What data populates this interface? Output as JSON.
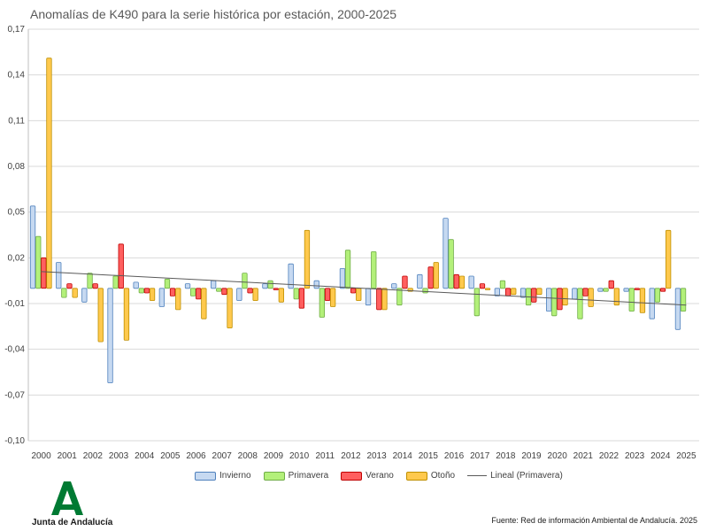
{
  "header": {
    "title": "Anomalías de K490 para la serie histórica por estación, 2000-2025"
  },
  "footer": {
    "source": "Fuente: Red de información Ambiental de Andalucía. 2025",
    "logo_text": "Junta de Andalucía"
  },
  "colors": {
    "invierno": "#c6d9f1",
    "invierno_border": "#4f81bd",
    "primavera": "#b3f07a",
    "primavera_border": "#70ad47",
    "verano": "#ff5f5f",
    "verano_border": "#c00000",
    "otono": "#ffc94d",
    "otono_border": "#bf8f00",
    "trend": "#595959",
    "grid": "#d9d9d9",
    "logo_green": "#007a33"
  },
  "chart_data": {
    "type": "bar",
    "title": "Anomalías de K490 para la serie histórica por estación, 2000-2025",
    "ylim": [
      -0.1,
      0.17
    ],
    "yticks": [
      "0,17",
      "0,14",
      "0,11",
      "0,08",
      "0,05",
      "0,02",
      "-0,01",
      "-0,04",
      "-0,07",
      "-0,10"
    ],
    "ytick_values": [
      0.17,
      0.14,
      0.11,
      0.08,
      0.05,
      0.02,
      -0.01,
      -0.04,
      -0.07,
      -0.1
    ],
    "grid": "horizontal",
    "legend_position": "bottom",
    "categories": [
      "2000",
      "2001",
      "2002",
      "2003",
      "2004",
      "2005",
      "2006",
      "2007",
      "2008",
      "2009",
      "2010",
      "2011",
      "2012",
      "2013",
      "2014",
      "2015",
      "2016",
      "2017",
      "2018",
      "2019",
      "2020",
      "2021",
      "2022",
      "2023",
      "2024",
      "2025"
    ],
    "series": [
      {
        "name": "Invierno",
        "values": [
          0.054,
          0.017,
          -0.009,
          -0.062,
          0.004,
          -0.012,
          0.003,
          0.005,
          -0.008,
          0.003,
          0.016,
          0.005,
          0.013,
          -0.011,
          0.003,
          0.009,
          0.046,
          0.008,
          -0.005,
          -0.006,
          -0.015,
          -0.007,
          -0.002,
          -0.002,
          -0.02,
          -0.027
        ]
      },
      {
        "name": "Primavera",
        "values": [
          0.034,
          -0.006,
          0.01,
          0.008,
          -0.003,
          0.006,
          -0.005,
          -0.002,
          0.01,
          0.005,
          -0.007,
          -0.019,
          0.025,
          0.024,
          -0.011,
          -0.003,
          0.032,
          -0.018,
          0.005,
          -0.011,
          -0.018,
          -0.02,
          -0.002,
          -0.015,
          -0.009,
          -0.015
        ]
      },
      {
        "name": "Verano",
        "values": [
          0.02,
          0.003,
          0.003,
          0.029,
          -0.003,
          -0.005,
          -0.007,
          -0.004,
          -0.003,
          -0.001,
          -0.013,
          -0.008,
          -0.003,
          -0.014,
          0.008,
          0.014,
          0.009,
          0.003,
          -0.005,
          -0.009,
          -0.014,
          -0.005,
          0.005,
          -0.001,
          -0.002,
          0.0
        ]
      },
      {
        "name": "Otoño",
        "values": [
          0.151,
          -0.006,
          -0.035,
          -0.034,
          -0.008,
          -0.014,
          -0.02,
          -0.026,
          -0.008,
          -0.009,
          0.038,
          -0.012,
          -0.008,
          -0.014,
          -0.002,
          0.017,
          0.008,
          -0.001,
          -0.004,
          -0.004,
          -0.011,
          -0.012,
          -0.011,
          -0.016,
          0.038,
          0.0
        ]
      }
    ],
    "trend": {
      "name": "Lineal (Primavera)",
      "start": 0.011,
      "end": -0.011
    }
  }
}
